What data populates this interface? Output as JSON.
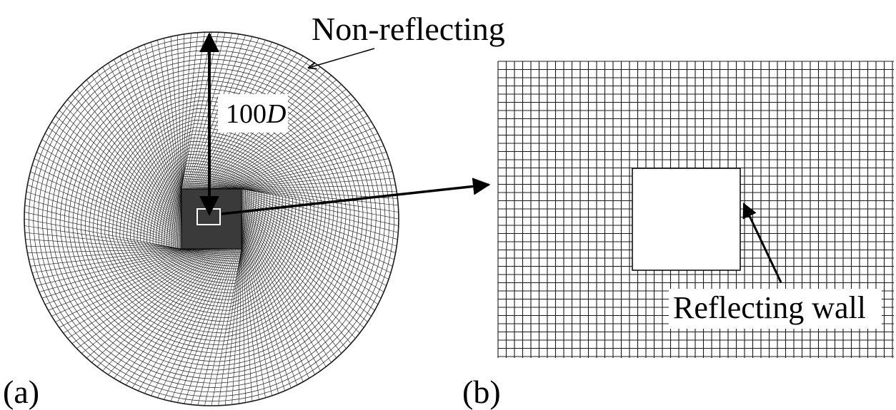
{
  "panel_a": {
    "label": "(a)",
    "boundary_label": "Non-reflecting",
    "distance_number": "100",
    "distance_unit": "D"
  },
  "panel_b": {
    "label": "(b)",
    "wall_label": "Reflecting wall"
  },
  "colors": {
    "ink": "#000000",
    "mesh_line": "#1a1a1a",
    "background": "#ffffff"
  }
}
